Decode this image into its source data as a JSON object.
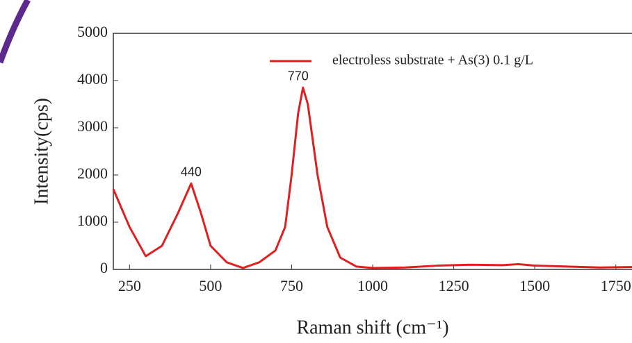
{
  "chart_data": {
    "type": "line",
    "x_label": "Raman shift (cm⁻¹)",
    "y_label": "Intensity(cps)",
    "xlim": [
      200,
      1800
    ],
    "ylim": [
      0,
      5000
    ],
    "xticks": [
      250,
      500,
      750,
      1000,
      1250,
      1500,
      1750
    ],
    "yticks": [
      0,
      1000,
      2000,
      3000,
      4000,
      5000
    ],
    "legend": "upper right",
    "series": [
      {
        "name": "electroless substrate + As(3) 0.1 g/L",
        "color": "#e02020",
        "x": [
          200,
          250,
          300,
          350,
          400,
          440,
          470,
          500,
          550,
          600,
          650,
          700,
          730,
          750,
          770,
          785,
          800,
          830,
          860,
          900,
          950,
          1000,
          1100,
          1200,
          1300,
          1400,
          1450,
          1500,
          1600,
          1700,
          1800
        ],
        "values": [
          1700,
          900,
          280,
          500,
          1200,
          1820,
          1200,
          500,
          150,
          30,
          150,
          400,
          900,
          2000,
          3300,
          3850,
          3500,
          2000,
          900,
          250,
          60,
          30,
          40,
          80,
          100,
          90,
          110,
          80,
          60,
          40,
          50
        ]
      }
    ],
    "annotations": [
      {
        "text": "440",
        "x": 440,
        "y": 2050
      },
      {
        "text": "770",
        "x": 770,
        "y": 4080
      }
    ]
  }
}
